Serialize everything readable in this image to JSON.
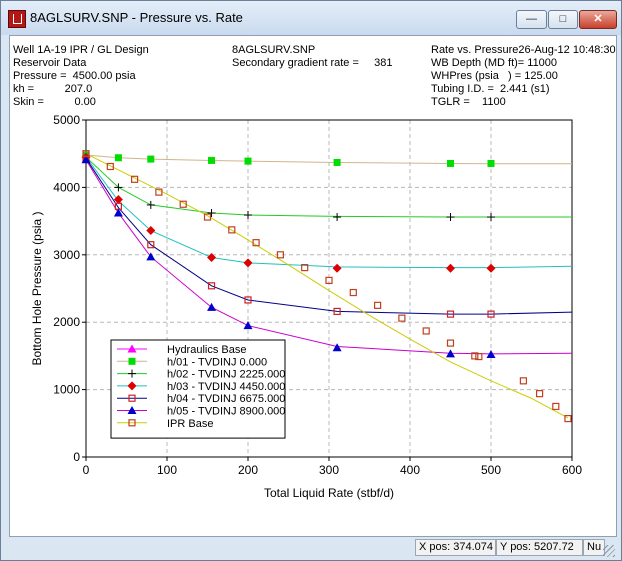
{
  "window": {
    "title": "8AGLSURV.SNP - Pressure vs. Rate"
  },
  "title_buttons": {
    "minimize": "—",
    "maximize": "□",
    "close": "✕"
  },
  "header": {
    "col1": [
      "Well 1A-19 IPR / GL Design",
      "Reservoir Data",
      "Pressure =  4500.00 psia",
      "kh =          207.0",
      "Skin =          0.00"
    ],
    "col2": [
      "8AGLSURV.SNP",
      "Secondary gradient rate =     381"
    ],
    "col3": [
      "Rate vs. Pressure26-Aug-12 10:48:30",
      "WB Depth (MD ft)= 11000",
      "WHPres (psia   ) = 125.00",
      "Tubing I.D. =  2.441 (s1)",
      "TGLR =    1100"
    ]
  },
  "status": {
    "xpos": "X pos: 374.074",
    "ypos": "Y pos: 5207.72",
    "extra": "Nu"
  },
  "chart_data": {
    "type": "line",
    "title": "",
    "xlabel": "Total Liquid Rate (stbf/d)",
    "ylabel": "Bottom Hole Pressure (psia   )",
    "xlim": [
      0,
      600
    ],
    "ylim": [
      0,
      5000
    ],
    "xticks": [
      0,
      100,
      200,
      300,
      400,
      500,
      600
    ],
    "yticks": [
      0,
      1000,
      2000,
      3000,
      4000,
      5000
    ],
    "grid": true,
    "legend_position": "bottom-left",
    "series": [
      {
        "name": "Hydraulics Base",
        "color": "#ff00ff",
        "marker": "triangle",
        "curve": [],
        "markers": []
      },
      {
        "name": "h/01 - TVDINJ 0.000",
        "color": "#00dd00",
        "marker": "square-filled",
        "lineColor": "#d2b48c",
        "curve": [
          [
            0,
            4480
          ],
          [
            40,
            4440
          ],
          [
            80,
            4420
          ],
          [
            155,
            4400
          ],
          [
            200,
            4390
          ],
          [
            310,
            4370
          ],
          [
            450,
            4355
          ],
          [
            500,
            4350
          ],
          [
            600,
            4350
          ]
        ],
        "markers": [
          [
            0,
            4480
          ],
          [
            40,
            4440
          ],
          [
            80,
            4420
          ],
          [
            155,
            4400
          ],
          [
            200,
            4390
          ],
          [
            310,
            4370
          ],
          [
            450,
            4355
          ],
          [
            500,
            4355
          ]
        ]
      },
      {
        "name": "h/02 - TVDINJ 2225.000",
        "color": "#000000",
        "marker": "plus",
        "lineColor": "#22cc22",
        "curve": [
          [
            0,
            4450
          ],
          [
            40,
            4000
          ],
          [
            80,
            3740
          ],
          [
            155,
            3620
          ],
          [
            200,
            3590
          ],
          [
            310,
            3570
          ],
          [
            450,
            3560
          ],
          [
            500,
            3560
          ],
          [
            600,
            3560
          ]
        ],
        "markers": [
          [
            0,
            4450
          ],
          [
            40,
            4000
          ],
          [
            80,
            3740
          ],
          [
            155,
            3620
          ],
          [
            200,
            3590
          ],
          [
            310,
            3560
          ],
          [
            450,
            3560
          ],
          [
            500,
            3560
          ]
        ]
      },
      {
        "name": "h/03 - TVDINJ 4450.000",
        "color": "#dd0000",
        "marker": "diamond",
        "lineColor": "#20c0c0",
        "curve": [
          [
            0,
            4450
          ],
          [
            40,
            3800
          ],
          [
            80,
            3360
          ],
          [
            155,
            2960
          ],
          [
            200,
            2880
          ],
          [
            310,
            2820
          ],
          [
            450,
            2810
          ],
          [
            500,
            2810
          ],
          [
            600,
            2830
          ]
        ],
        "markers": [
          [
            0,
            4450
          ],
          [
            40,
            3820
          ],
          [
            80,
            3360
          ],
          [
            155,
            2960
          ],
          [
            200,
            2880
          ],
          [
            310,
            2800
          ],
          [
            450,
            2800
          ],
          [
            500,
            2800
          ]
        ]
      },
      {
        "name": "h/04 - TVDINJ 6675.000",
        "color": "#cc2222",
        "marker": "square-open",
        "lineColor": "#000088",
        "curve": [
          [
            0,
            4430
          ],
          [
            40,
            3700
          ],
          [
            80,
            3150
          ],
          [
            155,
            2540
          ],
          [
            200,
            2330
          ],
          [
            310,
            2160
          ],
          [
            450,
            2120
          ],
          [
            500,
            2120
          ],
          [
            600,
            2150
          ]
        ],
        "markers": [
          [
            0,
            4430
          ],
          [
            40,
            3720
          ],
          [
            80,
            3150
          ],
          [
            155,
            2540
          ],
          [
            200,
            2330
          ],
          [
            310,
            2160
          ],
          [
            450,
            2120
          ],
          [
            500,
            2120
          ]
        ]
      },
      {
        "name": "h/05 - TVDINJ 8900.000",
        "color": "#0000cc",
        "marker": "triangle",
        "lineColor": "#cc00cc",
        "curve": [
          [
            0,
            4410
          ],
          [
            40,
            3620
          ],
          [
            80,
            2970
          ],
          [
            155,
            2220
          ],
          [
            200,
            1950
          ],
          [
            310,
            1640
          ],
          [
            450,
            1540
          ],
          [
            500,
            1530
          ],
          [
            600,
            1540
          ]
        ],
        "markers": [
          [
            0,
            4410
          ],
          [
            40,
            3620
          ],
          [
            80,
            2970
          ],
          [
            155,
            2220
          ],
          [
            200,
            1950
          ],
          [
            310,
            1620
          ],
          [
            450,
            1530
          ],
          [
            500,
            1520
          ]
        ]
      },
      {
        "name": "IPR Base",
        "color": "#c04020",
        "marker": "square-open",
        "lineColor": "#cccc00",
        "curve": [
          [
            0,
            4500
          ],
          [
            50,
            4200
          ],
          [
            100,
            3900
          ],
          [
            150,
            3580
          ],
          [
            200,
            3220
          ],
          [
            250,
            2850
          ],
          [
            300,
            2470
          ],
          [
            350,
            2100
          ],
          [
            400,
            1750
          ],
          [
            450,
            1410
          ],
          [
            500,
            1130
          ],
          [
            550,
            870
          ],
          [
            595,
            580
          ]
        ],
        "markers": [
          [
            0,
            4500
          ],
          [
            30,
            4310
          ],
          [
            60,
            4120
          ],
          [
            90,
            3930
          ],
          [
            120,
            3750
          ],
          [
            150,
            3560
          ],
          [
            180,
            3370
          ],
          [
            210,
            3180
          ],
          [
            240,
            3000
          ],
          [
            270,
            2810
          ],
          [
            300,
            2620
          ],
          [
            330,
            2440
          ],
          [
            360,
            2250
          ],
          [
            390,
            2060
          ],
          [
            420,
            1870
          ],
          [
            450,
            1690
          ],
          [
            480,
            1500
          ],
          [
            485,
            1490
          ],
          [
            540,
            1130
          ],
          [
            560,
            940
          ],
          [
            580,
            750
          ],
          [
            595,
            570
          ]
        ]
      }
    ]
  }
}
